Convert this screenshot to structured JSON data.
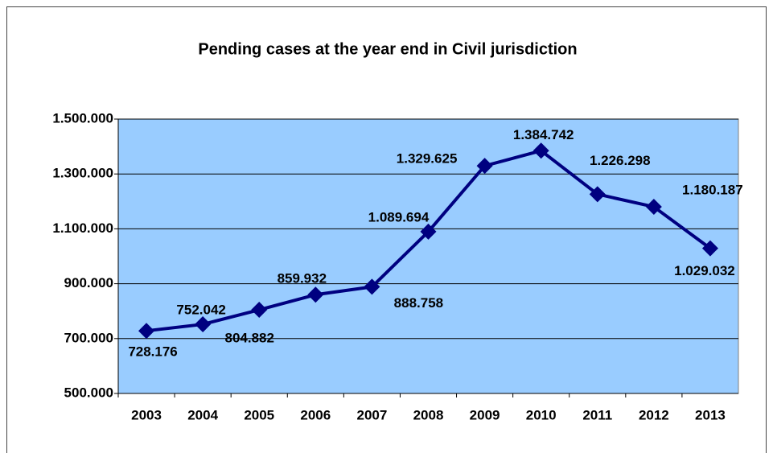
{
  "chart_data": {
    "type": "line",
    "title": "Pending cases at the year end in Civil jurisdiction",
    "categories": [
      "2003",
      "2004",
      "2005",
      "2006",
      "2007",
      "2008",
      "2009",
      "2010",
      "2011",
      "2012",
      "2013"
    ],
    "series": [
      {
        "name": "Pending cases",
        "color": "#000080",
        "values": [
          728176,
          752042,
          804882,
          859932,
          888758,
          1089694,
          1329625,
          1384742,
          1226298,
          1180187,
          1029032
        ],
        "value_labels": [
          "728.176",
          "752.042",
          "804.882",
          "859.932",
          "888.758",
          "1.089.694",
          "1.329.625",
          "1.384.742",
          "1.226.298",
          "1.180.187",
          "1.029.032"
        ]
      }
    ],
    "ylim": [
      500000,
      1500000
    ],
    "yticks": [
      {
        "value": 500000,
        "label": "500.000"
      },
      {
        "value": 700000,
        "label": "700.000"
      },
      {
        "value": 900000,
        "label": "900.000"
      },
      {
        "value": 1100000,
        "label": "1.100.000"
      },
      {
        "value": 1300000,
        "label": "1.300.000"
      },
      {
        "value": 1500000,
        "label": "1.500.000"
      }
    ],
    "grid": true,
    "plot_background": "#99ccff"
  }
}
